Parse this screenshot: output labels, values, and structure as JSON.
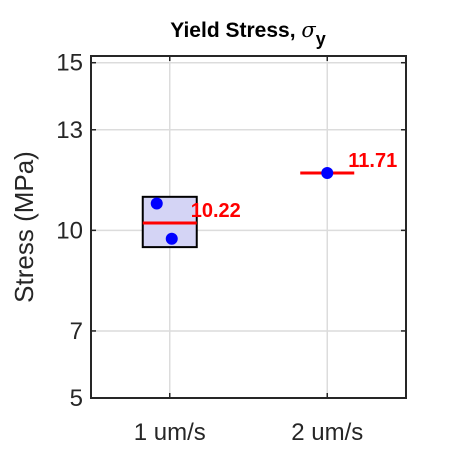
{
  "chart_data": {
    "type": "box",
    "title_main": "Yield Stress, ",
    "title_symbol": "σ",
    "title_subscript": "y",
    "xlabel": "",
    "ylabel": "Stress (MPa)",
    "ylim": [
      5,
      15.2
    ],
    "yticks": [
      5,
      7,
      10,
      13,
      15
    ],
    "categories": [
      "1 um/s",
      "2 um/s"
    ],
    "grid": true,
    "groups": [
      {
        "category": "1 um/s",
        "q1": 9.5,
        "q3": 11.0,
        "median": 10.22,
        "median_label": "10.22",
        "points": [
          10.8,
          9.75
        ]
      },
      {
        "category": "2 um/s",
        "q1": 11.71,
        "q3": 11.71,
        "median": 11.71,
        "median_label": "11.71",
        "points": [
          11.71
        ]
      }
    ],
    "colors": {
      "box_fill": "#d4d4f5",
      "box_edge": "#000000",
      "median": "#ff0000",
      "points": "#0000ff",
      "label": "#ff0000",
      "grid": "#dcdcdc"
    }
  }
}
